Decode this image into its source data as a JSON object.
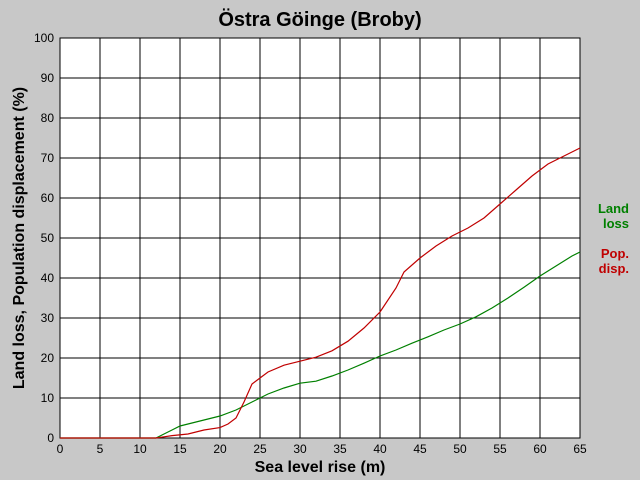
{
  "chart_data": {
    "type": "line",
    "title": "Östra Göinge (Broby)",
    "xlabel": "Sea level rise (m)",
    "ylabel": "Land loss, Population displacement (%)",
    "xlim": [
      0,
      65
    ],
    "ylim": [
      0,
      100
    ],
    "x_ticks": [
      "0",
      "5",
      "10",
      "15",
      "20",
      "25",
      "30",
      "35",
      "40",
      "45",
      "50",
      "55",
      "60",
      "65"
    ],
    "y_ticks": [
      "0",
      "10",
      "20",
      "30",
      "40",
      "50",
      "60",
      "70",
      "80",
      "90",
      "100"
    ],
    "grid": true,
    "legend_position": "right",
    "series": [
      {
        "name": "Land loss",
        "legend_lines": [
          "Land",
          "loss"
        ],
        "color": "#008000",
        "points": [
          [
            0,
            0
          ],
          [
            12,
            0
          ],
          [
            13,
            1
          ],
          [
            14,
            2
          ],
          [
            15,
            3
          ],
          [
            17,
            4
          ],
          [
            19,
            5
          ],
          [
            20,
            5.5
          ],
          [
            22,
            7
          ],
          [
            24,
            9
          ],
          [
            26,
            11
          ],
          [
            28,
            12.5
          ],
          [
            30,
            13.7
          ],
          [
            32,
            14.2
          ],
          [
            34,
            15.5
          ],
          [
            36,
            17
          ],
          [
            38,
            18.7
          ],
          [
            40,
            20.5
          ],
          [
            42,
            22
          ],
          [
            44,
            23.7
          ],
          [
            46,
            25.3
          ],
          [
            48,
            27
          ],
          [
            50,
            28.5
          ],
          [
            52,
            30.3
          ],
          [
            54,
            32.5
          ],
          [
            56,
            35
          ],
          [
            58,
            37.7
          ],
          [
            60,
            40.5
          ],
          [
            62,
            43
          ],
          [
            64,
            45.5
          ],
          [
            65,
            46.5
          ]
        ]
      },
      {
        "name": "Pop. disp.",
        "legend_lines": [
          "Pop.",
          "disp."
        ],
        "color": "#c00000",
        "points": [
          [
            0,
            0
          ],
          [
            12,
            0
          ],
          [
            13,
            0.3
          ],
          [
            14,
            0.6
          ],
          [
            16,
            1
          ],
          [
            18,
            2
          ],
          [
            20,
            2.6
          ],
          [
            21,
            3.5
          ],
          [
            22,
            5
          ],
          [
            23,
            9
          ],
          [
            24,
            13.5
          ],
          [
            25,
            15
          ],
          [
            26,
            16.5
          ],
          [
            28,
            18.2
          ],
          [
            30,
            19.2
          ],
          [
            32,
            20.2
          ],
          [
            34,
            21.8
          ],
          [
            36,
            24.2
          ],
          [
            38,
            27.5
          ],
          [
            40,
            31.5
          ],
          [
            42,
            37.5
          ],
          [
            43,
            41.5
          ],
          [
            45,
            45
          ],
          [
            47,
            48
          ],
          [
            49,
            50.5
          ],
          [
            51,
            52.5
          ],
          [
            53,
            55
          ],
          [
            55,
            58.5
          ],
          [
            57,
            62
          ],
          [
            59,
            65.5
          ],
          [
            61,
            68.5
          ],
          [
            63,
            70.5
          ],
          [
            65,
            72.5
          ]
        ]
      }
    ]
  }
}
